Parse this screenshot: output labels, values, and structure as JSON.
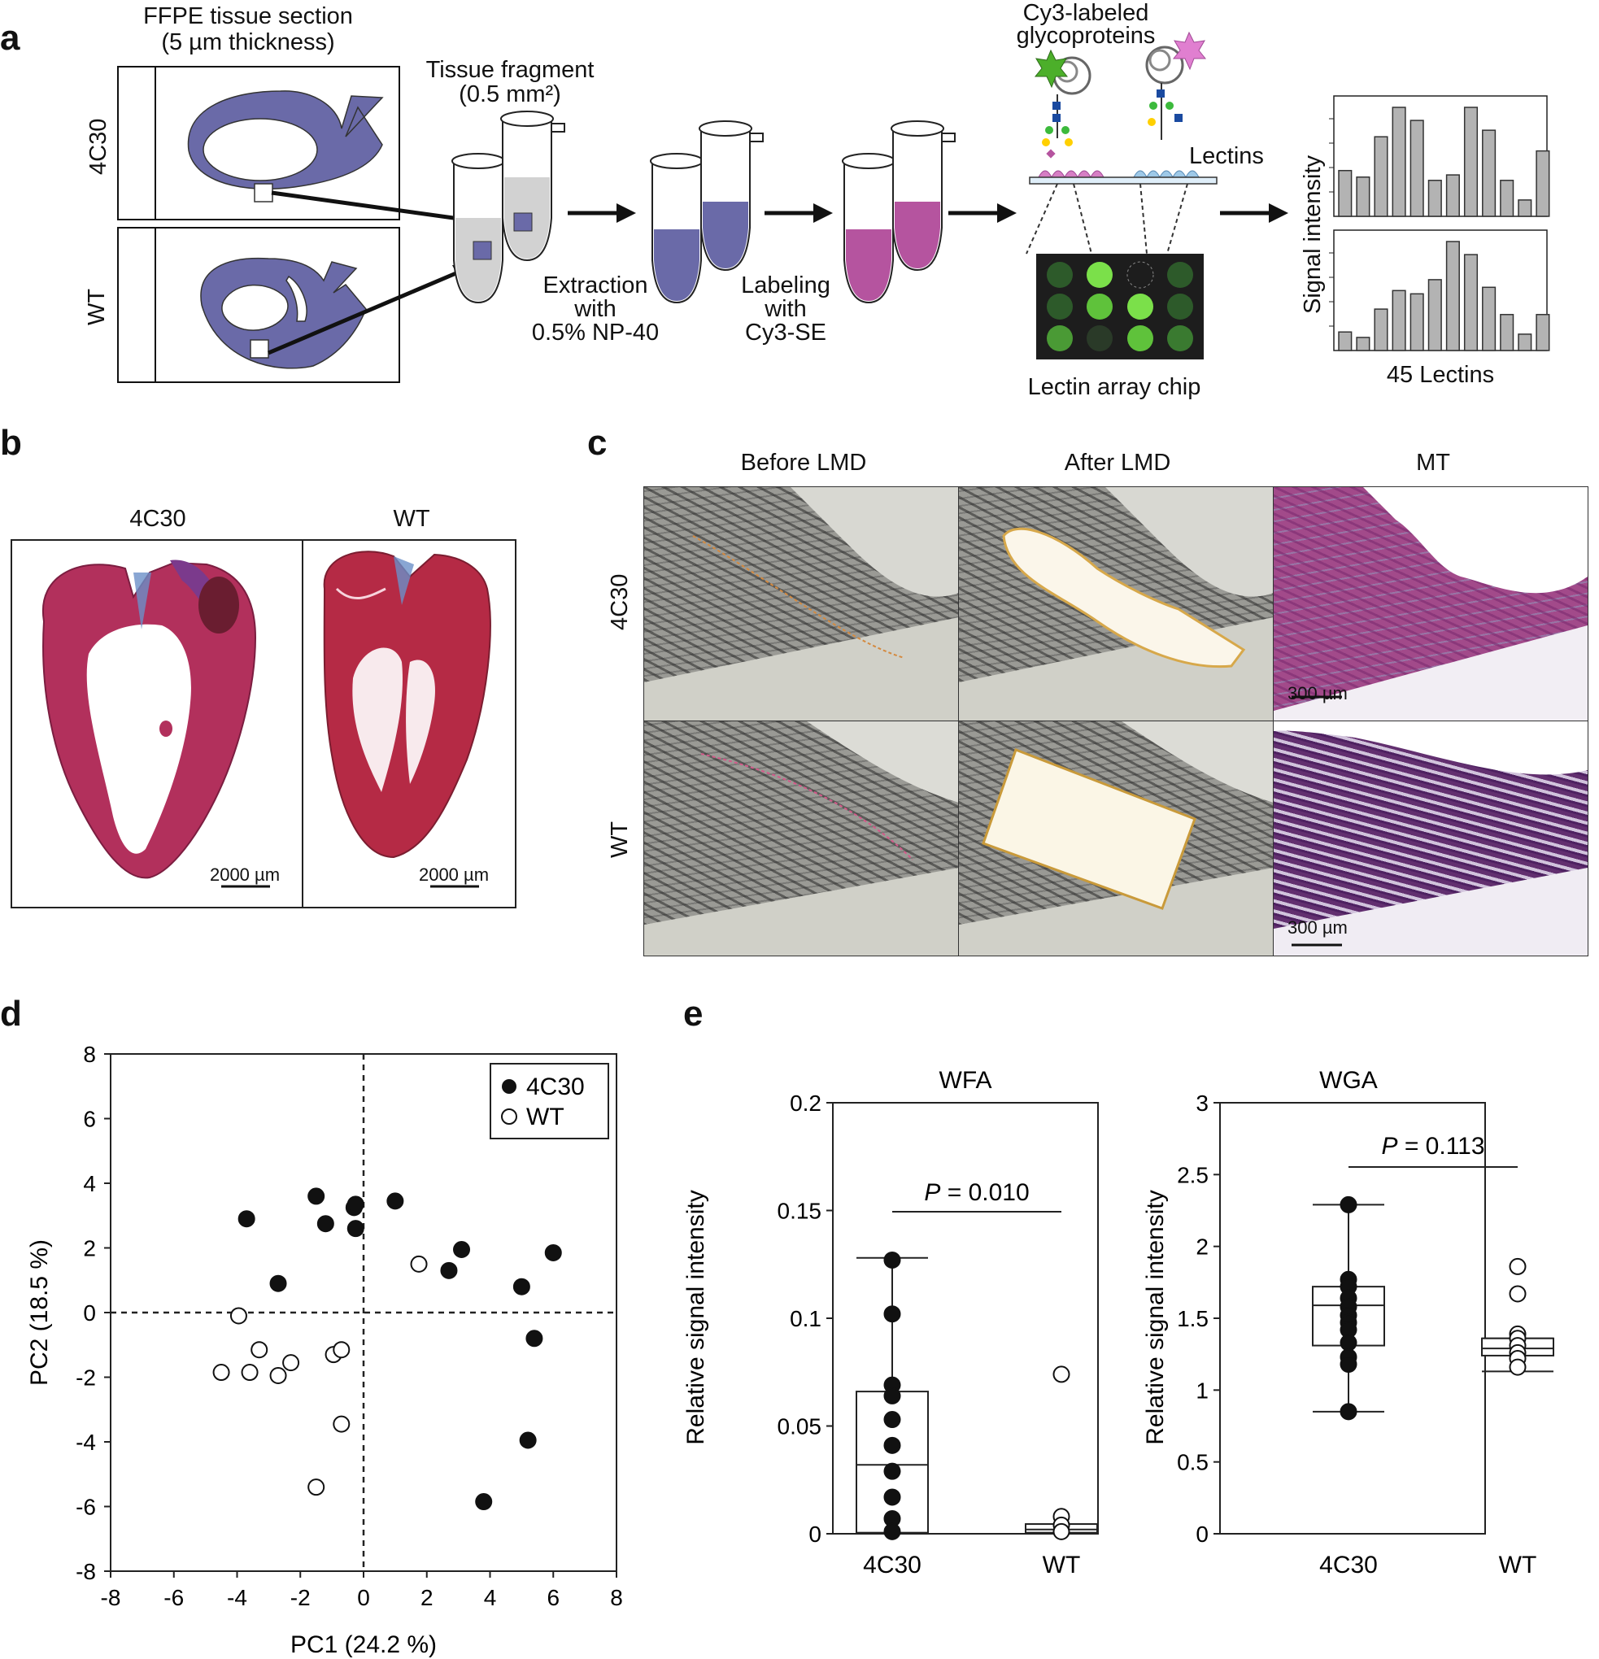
{
  "panels": {
    "a": "a",
    "b": "b",
    "c": "c",
    "d": "d",
    "e": "e"
  },
  "panel_a": {
    "ffpe_line1": "FFPE tissue section",
    "ffpe_line2": "(5 µm thickness)",
    "group_4c30": "4C30",
    "group_wt": "WT",
    "fragment_line1": "Tissue fragment",
    "fragment_line2": "(0.5 mm²)",
    "extraction_line1": "Extraction",
    "extraction_line2": "with",
    "extraction_line3": "0.5% NP-40",
    "labeling_line1": "Labeling",
    "labeling_line2": "with",
    "labeling_line3": "Cy3-SE",
    "cy3_line1": "Cy3-labeled",
    "cy3_line2": "glycoproteins",
    "lectins": "Lectins",
    "chip": "Lectin array chip",
    "signal_axis": "Signal intensity",
    "lectin_count": "45 Lectins",
    "colors": {
      "tissue": "#6a6aa8",
      "tube_extract": "#6a6aa8",
      "tube_label": "#b5549f",
      "chip_bg": "#1d1d1d",
      "spot_bright": "#7be04a",
      "spot_dim": "#2d5a2a"
    },
    "bars_top": [
      0.42,
      0.36,
      0.73,
      1.0,
      0.88,
      0.33,
      0.38,
      1.0,
      0.79,
      0.33,
      0.15,
      0.6
    ],
    "bars_bottom": [
      0.17,
      0.12,
      0.38,
      0.55,
      0.52,
      0.65,
      1.0,
      0.88,
      0.58,
      0.33,
      0.15,
      0.33
    ]
  },
  "panel_b": {
    "label_4c30": "4C30",
    "label_wt": "WT",
    "scale_left": "2000 µm",
    "scale_right": "2000 µm"
  },
  "panel_c": {
    "col1": "Before LMD",
    "col2": "After LMD",
    "col3": "MT",
    "row1": "4C30",
    "row2": "WT",
    "scale_top": "300 µm",
    "scale_bottom": "300 µm"
  },
  "chart_data": [
    {
      "type": "scatter",
      "panel": "d",
      "xlabel": "PC1 (24.2 %)",
      "ylabel": "PC2 (18.5 %)",
      "xlim": [
        -8,
        8
      ],
      "ylim": [
        -8,
        8
      ],
      "xticks": [
        "-8",
        "-6",
        "-4",
        "-2",
        "0",
        "2",
        "4",
        "6",
        "8"
      ],
      "yticks": [
        "8",
        "6",
        "4",
        "2",
        "0",
        "-2",
        "-4",
        "-6",
        "-8"
      ],
      "legend_position": "top-right",
      "reference_lines": "dashed at x=0 and y=0",
      "series": [
        {
          "name": "4C30",
          "marker": "filled",
          "points": [
            [
              -3.7,
              2.9
            ],
            [
              -1.5,
              3.6
            ],
            [
              -1.2,
              2.75
            ],
            [
              -0.3,
              3.25
            ],
            [
              -0.25,
              3.35
            ],
            [
              -0.25,
              2.6
            ],
            [
              1.0,
              3.45
            ],
            [
              -2.7,
              0.9
            ],
            [
              3.1,
              1.95
            ],
            [
              2.7,
              1.3
            ],
            [
              5.0,
              0.8
            ],
            [
              6.0,
              1.85
            ],
            [
              5.4,
              -0.8
            ],
            [
              5.2,
              -3.95
            ],
            [
              3.8,
              -5.85
            ]
          ]
        },
        {
          "name": "WT",
          "marker": "open",
          "points": [
            [
              1.75,
              1.5
            ],
            [
              -3.95,
              -0.1
            ],
            [
              -3.3,
              -1.15
            ],
            [
              -4.5,
              -1.85
            ],
            [
              -3.6,
              -1.85
            ],
            [
              -2.7,
              -1.95
            ],
            [
              -2.3,
              -1.55
            ],
            [
              -0.95,
              -1.3
            ],
            [
              -0.7,
              -1.15
            ],
            [
              -0.7,
              -3.45
            ],
            [
              -1.5,
              -5.4
            ]
          ]
        }
      ]
    },
    {
      "type": "box",
      "panel": "e",
      "title": "WFA",
      "ylabel": "Relative signal intensity",
      "ylim": [
        0,
        0.2
      ],
      "yticks": [
        "0",
        "0.05",
        "0.1",
        "0.15",
        "0.2"
      ],
      "categories": [
        "4C30",
        "WT"
      ],
      "p_value_prefix": "P",
      "p_value_text": " = 0.010",
      "boxes": [
        {
          "name": "4C30",
          "min": 0,
          "q1": 0.0005,
          "median": 0.032,
          "q3": 0.066,
          "max": 0.128
        },
        {
          "name": "WT",
          "min": 0,
          "q1": 0.0005,
          "median": 0.002,
          "q3": 0.0045,
          "max": 0.0045
        }
      ],
      "points": {
        "4C30": [
          0.127,
          0.102,
          0.069,
          0.064,
          0.053,
          0.041,
          0.029,
          0.017,
          0.007,
          0.001
        ],
        "WT": [
          0.074,
          0.008,
          0.004,
          0.001
        ]
      }
    },
    {
      "type": "box",
      "panel": "e",
      "title": "WGA",
      "ylabel": "Relative signal intensity",
      "ylim": [
        0,
        3
      ],
      "yticks": [
        "0",
        "0.5",
        "1",
        "1.5",
        "2",
        "2.5",
        "3"
      ],
      "categories": [
        "4C30",
        "WT"
      ],
      "p_value_prefix": "P",
      "p_value_text": " = 0.113",
      "boxes": [
        {
          "name": "4C30",
          "min": 0.85,
          "q1": 1.31,
          "median": 1.59,
          "q3": 1.72,
          "max": 2.29
        },
        {
          "name": "WT",
          "min": 1.13,
          "q1": 1.24,
          "median": 1.29,
          "q3": 1.36,
          "max": 1.36
        }
      ],
      "points": {
        "4C30": [
          2.29,
          1.77,
          1.72,
          1.64,
          1.58,
          1.52,
          1.47,
          1.42,
          1.33,
          1.23,
          1.18,
          0.85
        ],
        "WT": [
          1.86,
          1.67,
          1.39,
          1.36,
          1.31,
          1.26,
          1.22,
          1.16
        ]
      }
    }
  ]
}
